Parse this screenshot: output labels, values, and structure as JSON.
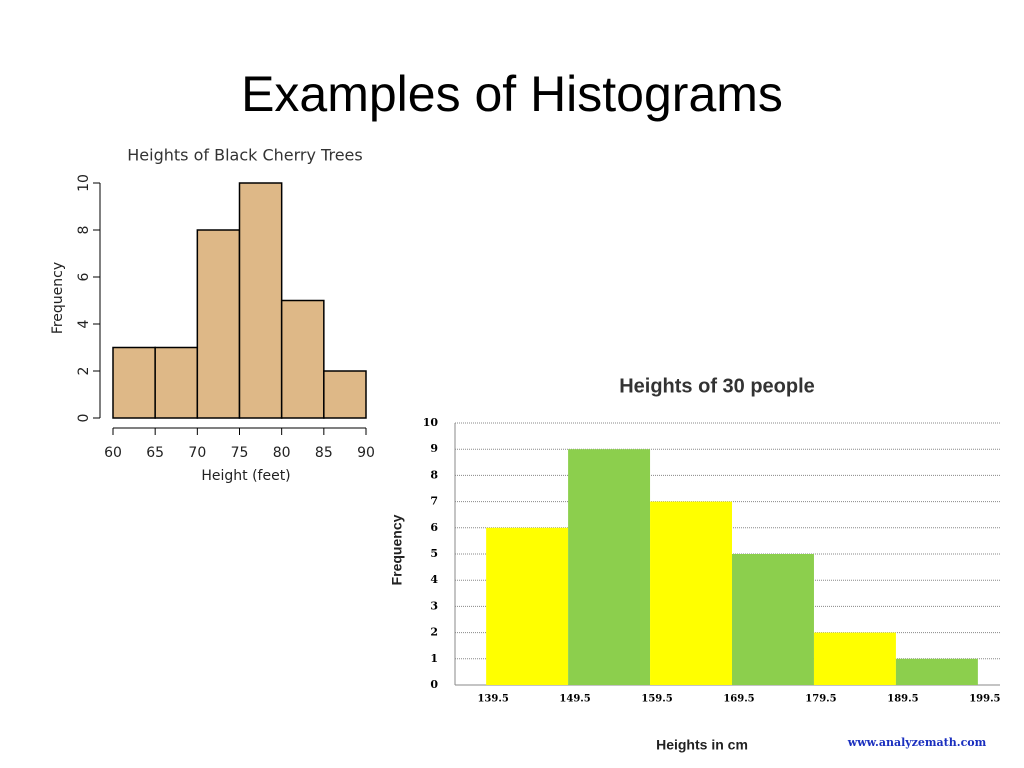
{
  "slide": {
    "title": "Examples of Histograms"
  },
  "chart_data": [
    {
      "type": "histogram",
      "title": "Heights of Black Cherry Trees",
      "bins": [
        60,
        65,
        70,
        75,
        80,
        85,
        90
      ],
      "values": [
        3,
        3,
        8,
        10,
        5,
        2
      ],
      "color": "#deb887",
      "xlabel": "Height (feet)",
      "ylabel": "Frequency",
      "xlim": [
        60,
        90
      ],
      "xticks": [
        60,
        65,
        70,
        75,
        80,
        85,
        90
      ],
      "ylim": [
        0,
        10
      ],
      "yticks": [
        0,
        2,
        4,
        6,
        8,
        10
      ],
      "grid": false
    },
    {
      "type": "histogram",
      "title": "Heights of 30 people",
      "bins": [
        139.5,
        149.5,
        159.5,
        169.5,
        179.5,
        189.5,
        199.5
      ],
      "values": [
        6,
        9,
        7,
        5,
        2,
        1
      ],
      "colors": [
        "#ffff00",
        "#8ccf4d",
        "#ffff00",
        "#8ccf4d",
        "#ffff00",
        "#8ccf4d"
      ],
      "xlabel": "Heights in cm",
      "ylabel": "Frequency",
      "xlim": [
        135.7,
        202.2
      ],
      "xticks": [
        139.5,
        149.5,
        159.5,
        169.5,
        179.5,
        189.5,
        199.5
      ],
      "ylim": [
        0,
        10
      ],
      "yticks": [
        0,
        1,
        2,
        3,
        4,
        5,
        6,
        7,
        8,
        9,
        10
      ],
      "grid": true,
      "annotation": "www.analyzemath.com"
    }
  ]
}
